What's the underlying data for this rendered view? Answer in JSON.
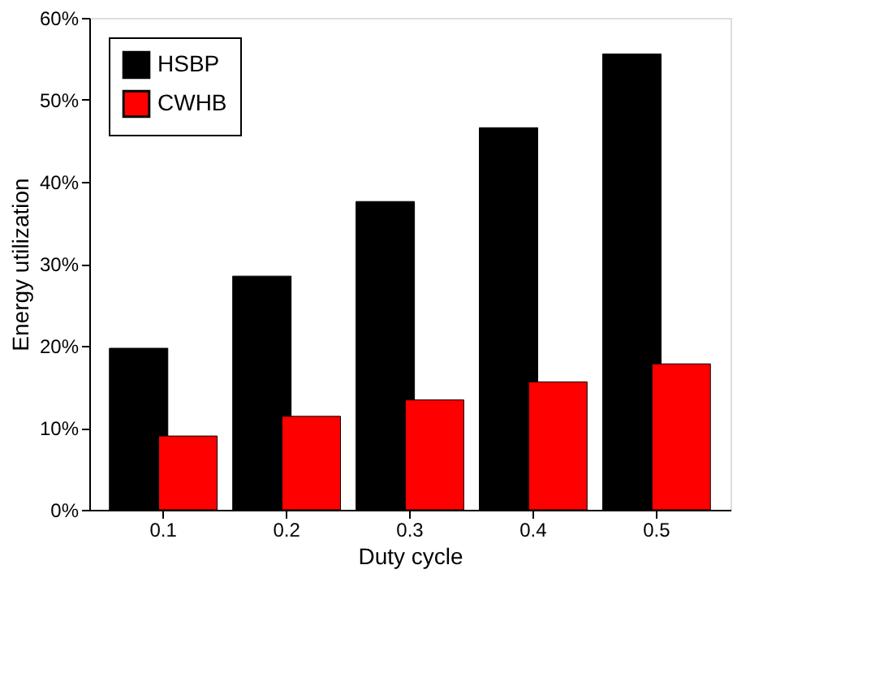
{
  "chart_data": {
    "type": "bar",
    "xlabel": "Duty cycle",
    "ylabel": "Energy utilization",
    "categories": [
      "0.1",
      "0.2",
      "0.3",
      "0.4",
      "0.5"
    ],
    "series": [
      {
        "name": "HSBP",
        "color": "#000000",
        "values": [
          19.7,
          28.5,
          37.6,
          46.6,
          55.6
        ]
      },
      {
        "name": "CWHB",
        "color": "#ff0000",
        "values": [
          9.0,
          11.4,
          13.4,
          15.6,
          17.8
        ]
      }
    ],
    "ylim": [
      0,
      60
    ],
    "yticks": [
      {
        "value": 0,
        "label": "0%"
      },
      {
        "value": 10,
        "label": "10%"
      },
      {
        "value": 20,
        "label": "20%"
      },
      {
        "value": 30,
        "label": "30%"
      },
      {
        "value": 40,
        "label": "40%"
      },
      {
        "value": 50,
        "label": "50%"
      },
      {
        "value": 60,
        "label": "60%"
      }
    ],
    "grid": false,
    "legend": "top left"
  }
}
